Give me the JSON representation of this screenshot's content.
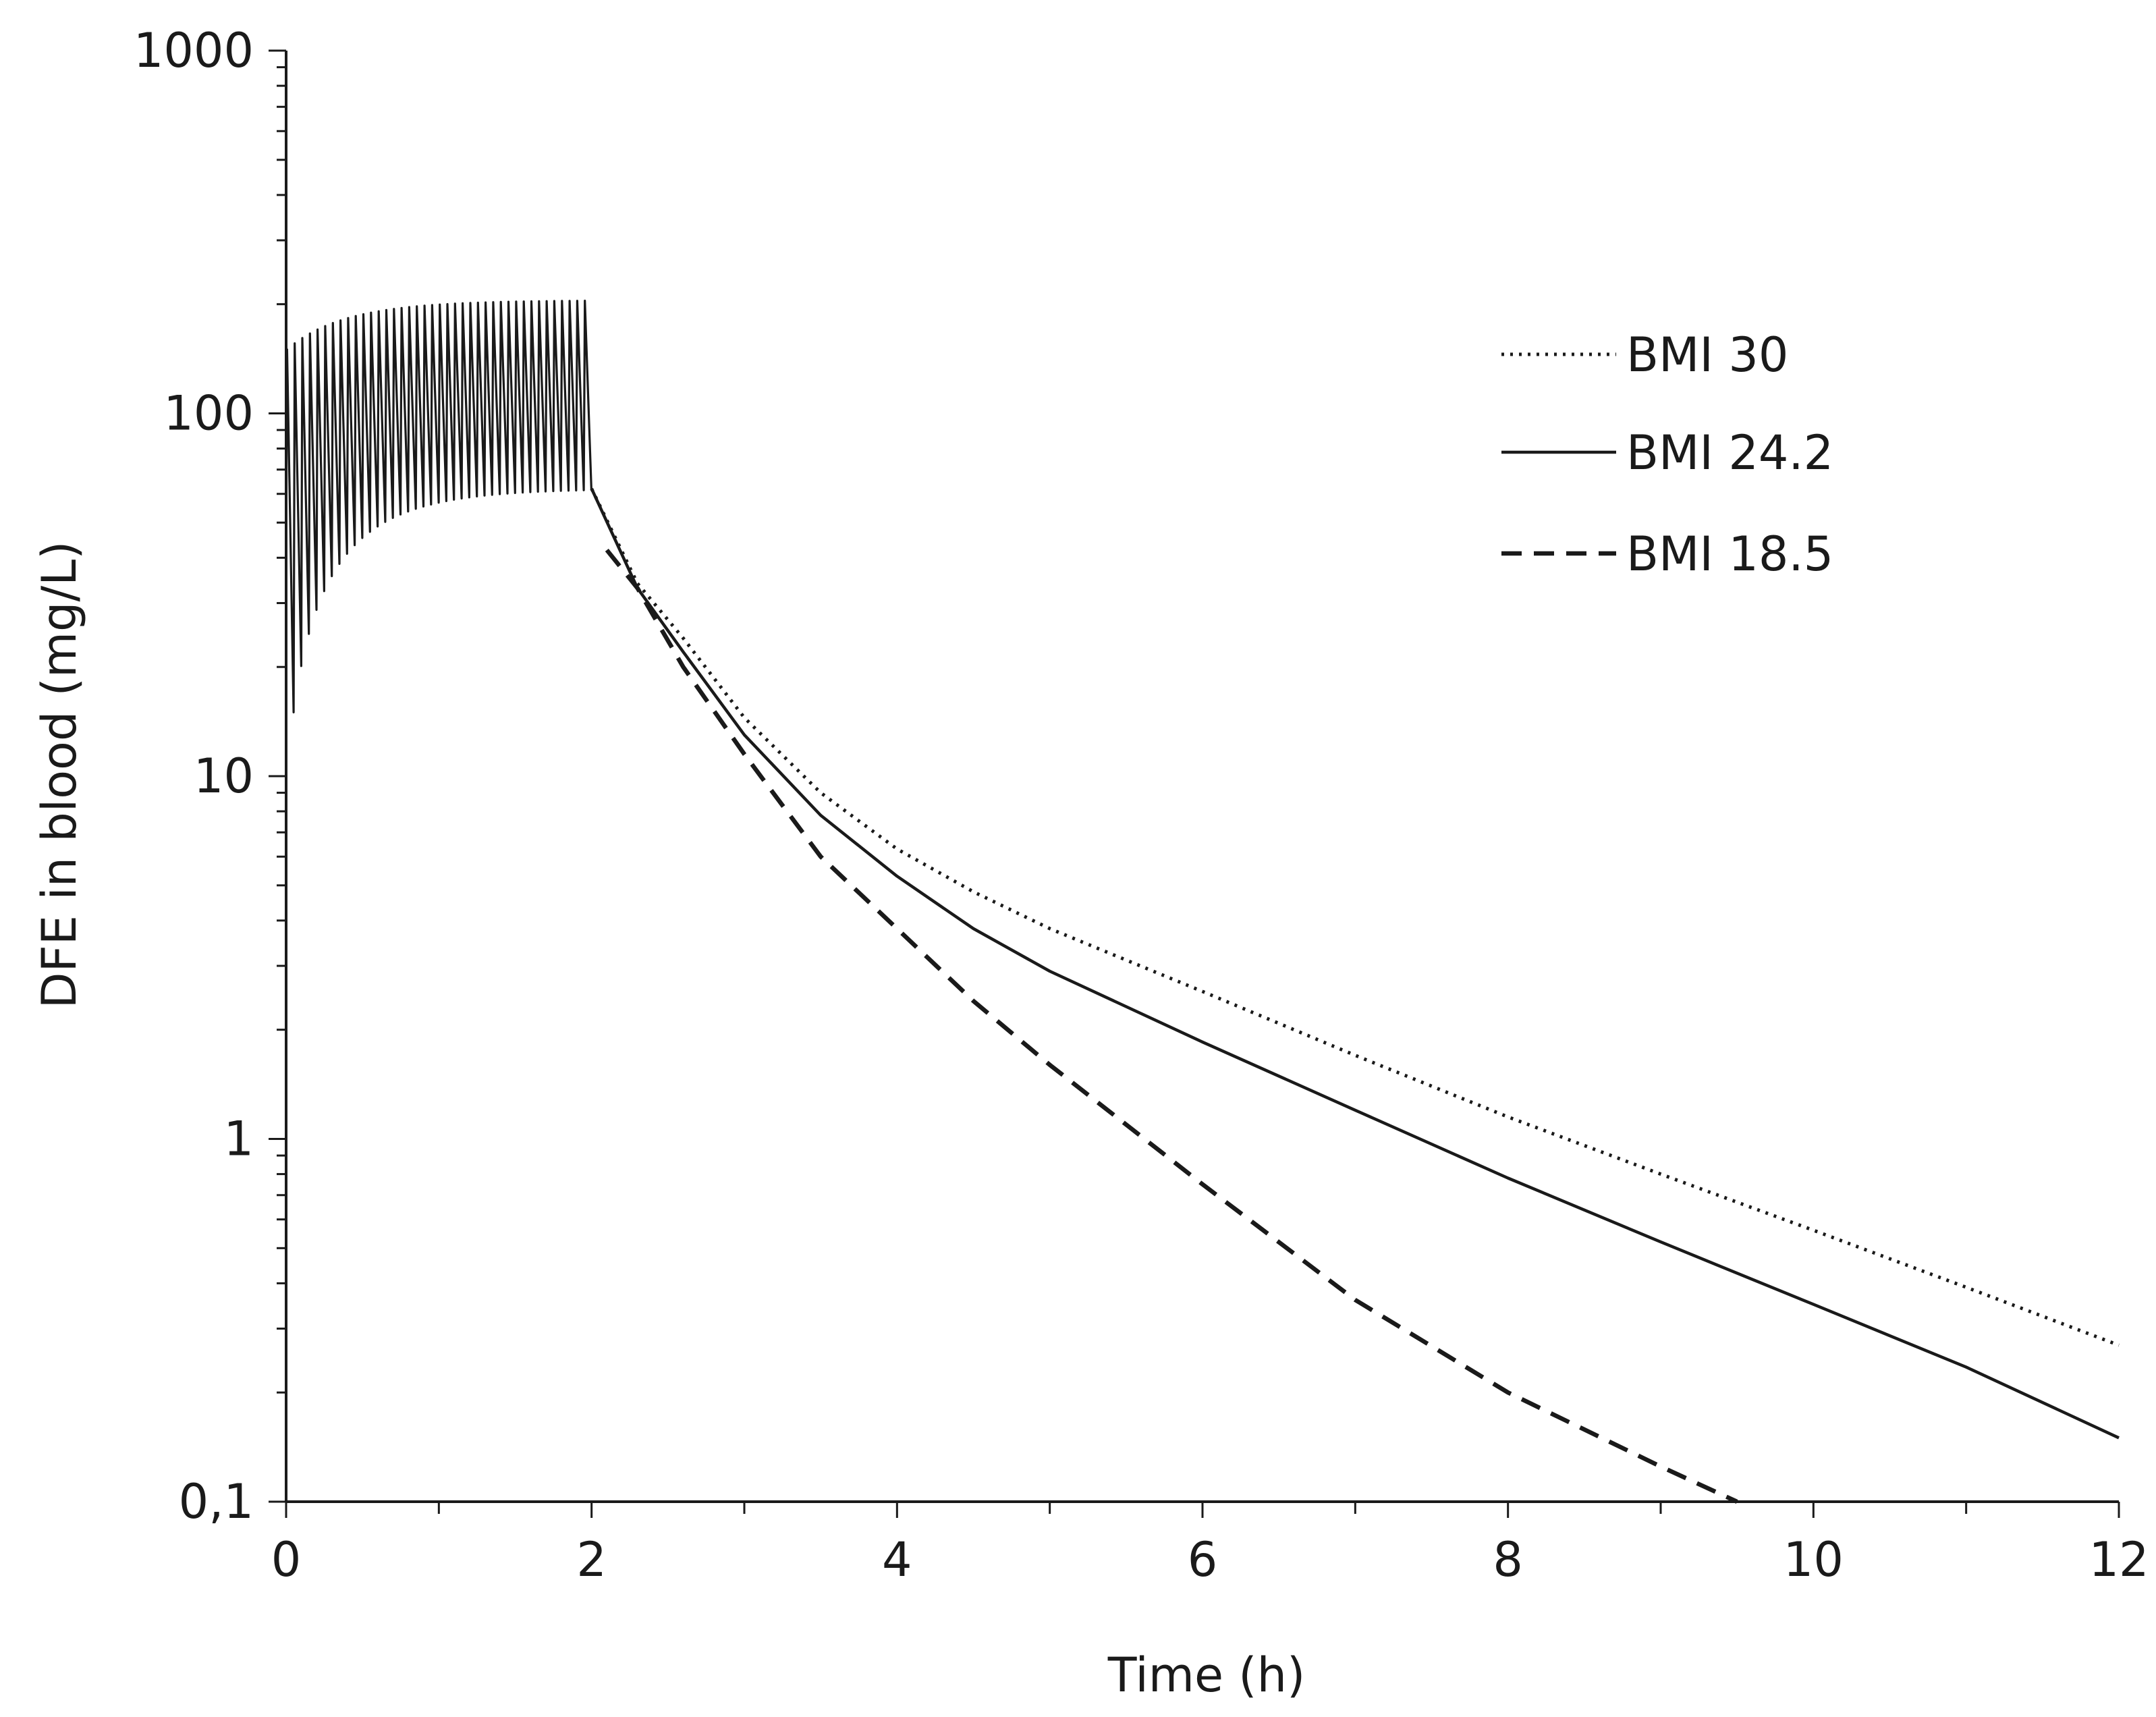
{
  "chart_data": {
    "type": "line",
    "title": "",
    "xlabel": "Time (h)",
    "ylabel": "DFE in blood (mg/L)",
    "xlim": [
      0,
      12
    ],
    "ylim": [
      0.1,
      1000
    ],
    "yscale": "log",
    "x_ticks": [
      0,
      2,
      4,
      6,
      8,
      10,
      12
    ],
    "x_tick_labels": [
      "0",
      "2",
      "4",
      "6",
      "8",
      "10",
      "12"
    ],
    "y_ticks": [
      0.1,
      1,
      10,
      100,
      1000
    ],
    "y_tick_labels": [
      "0,1",
      "1",
      "10",
      "100",
      "1000"
    ],
    "legend_position": "top-right",
    "dosing_phase": {
      "start_h": 0,
      "end_h": 2,
      "pulses": 40,
      "peak_start": 150,
      "peak_end": 205,
      "trough_start": 15,
      "trough_end": 62
    },
    "series": [
      {
        "name": "BMI 30",
        "style": "dotted",
        "x": [
          2.0,
          2.3,
          2.6,
          3.0,
          3.5,
          4.0,
          4.5,
          5.0,
          6.0,
          7.0,
          8.0,
          9.0,
          10.0,
          11.0,
          12.0
        ],
        "y": [
          62,
          34,
          24,
          14.5,
          9.0,
          6.3,
          4.8,
          3.8,
          2.55,
          1.7,
          1.15,
          0.8,
          0.56,
          0.39,
          0.27
        ]
      },
      {
        "name": "BMI 24.2",
        "style": "solid",
        "x": [
          2.0,
          2.3,
          2.6,
          3.0,
          3.5,
          4.0,
          4.5,
          5.0,
          6.0,
          7.0,
          8.0,
          9.0,
          10.0,
          11.0,
          12.0
        ],
        "y": [
          62,
          33,
          22,
          13.0,
          7.8,
          5.3,
          3.8,
          2.9,
          1.85,
          1.2,
          0.78,
          0.52,
          0.35,
          0.235,
          0.15
        ]
      },
      {
        "name": "BMI 18.5",
        "style": "dashed",
        "x": [
          2.1,
          2.3,
          2.6,
          3.0,
          3.5,
          4.0,
          4.5,
          5.0,
          6.0,
          7.0,
          8.0,
          9.0,
          9.5
        ],
        "y": [
          42,
          33,
          20,
          11.5,
          6.0,
          3.8,
          2.4,
          1.6,
          0.75,
          0.36,
          0.2,
          0.125,
          0.1
        ]
      }
    ]
  }
}
